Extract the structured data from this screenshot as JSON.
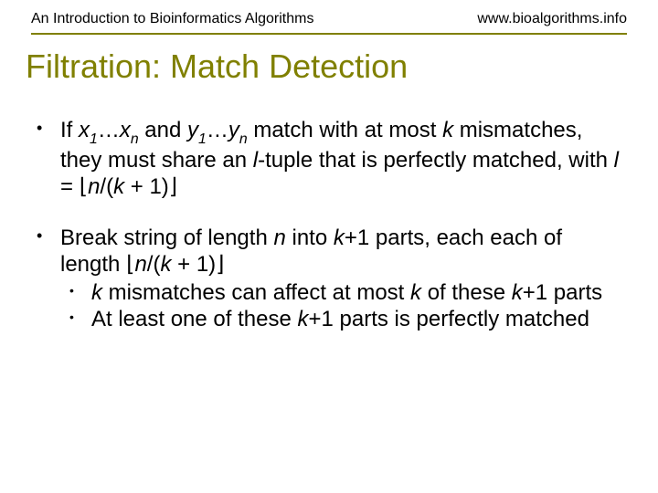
{
  "header": {
    "left": "An Introduction to Bioinformatics Algorithms",
    "right": "www.bioalgorithms.info"
  },
  "title": "Filtration: Match Detection",
  "bullets": {
    "b1_a": "If ",
    "b1_x": "x",
    "b1_s1": "1",
    "b1_dots1": "…",
    "b1_x2": "x",
    "b1_sn1": "n",
    "b1_and": " and ",
    "b1_y": "y",
    "b1_s1b": "1",
    "b1_dots2": "…",
    "b1_y2": "y",
    "b1_sn2": "n",
    "b1_b": " match with at most ",
    "b1_k": "k",
    "b1_c": " mismatches, they must share an ",
    "b1_l": "l",
    "b1_d": "-tuple that is perfectly matched, with ",
    "b1_l2": "l",
    "b1_eq": " = ",
    "b1_fl": "⌊",
    "b1_n": "n",
    "b1_e": "/(",
    "b1_k2": "k",
    "b1_f": " + 1)",
    "b1_fr": "⌋",
    "b2_a": "Break string of length ",
    "b2_n": "n",
    "b2_b": " into ",
    "b2_k": "k",
    "b2_c": "+1 parts, each each of length ",
    "b2_fl": "⌊",
    "b2_n2": "n",
    "b2_d": "/(",
    "b2_k2": "k",
    "b2_e": " + 1)",
    "b2_fr": "⌋",
    "s1_k": "k",
    "s1_a": " mismatches can affect at most ",
    "s1_k2": "k",
    "s1_b": " of these ",
    "s1_k3": "k",
    "s1_c": "+1 parts",
    "s2_a": "At least one of these ",
    "s2_k": "k",
    "s2_b": "+1 parts is perfectly matched"
  },
  "colors": {
    "accent": "#808000",
    "text": "#000000",
    "background": "#ffffff"
  }
}
